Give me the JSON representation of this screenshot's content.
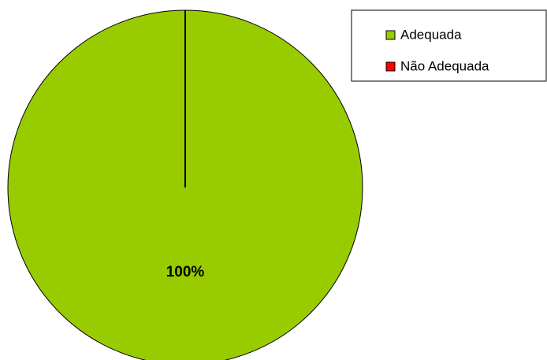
{
  "chart_data": {
    "type": "pie",
    "categories": [
      "Adequada",
      "Não Adequada"
    ],
    "values": [
      100,
      0
    ],
    "value_labels": [
      "100%",
      null
    ],
    "colors": [
      "#99cc00",
      "#ff0000"
    ],
    "legend": "top-right"
  }
}
